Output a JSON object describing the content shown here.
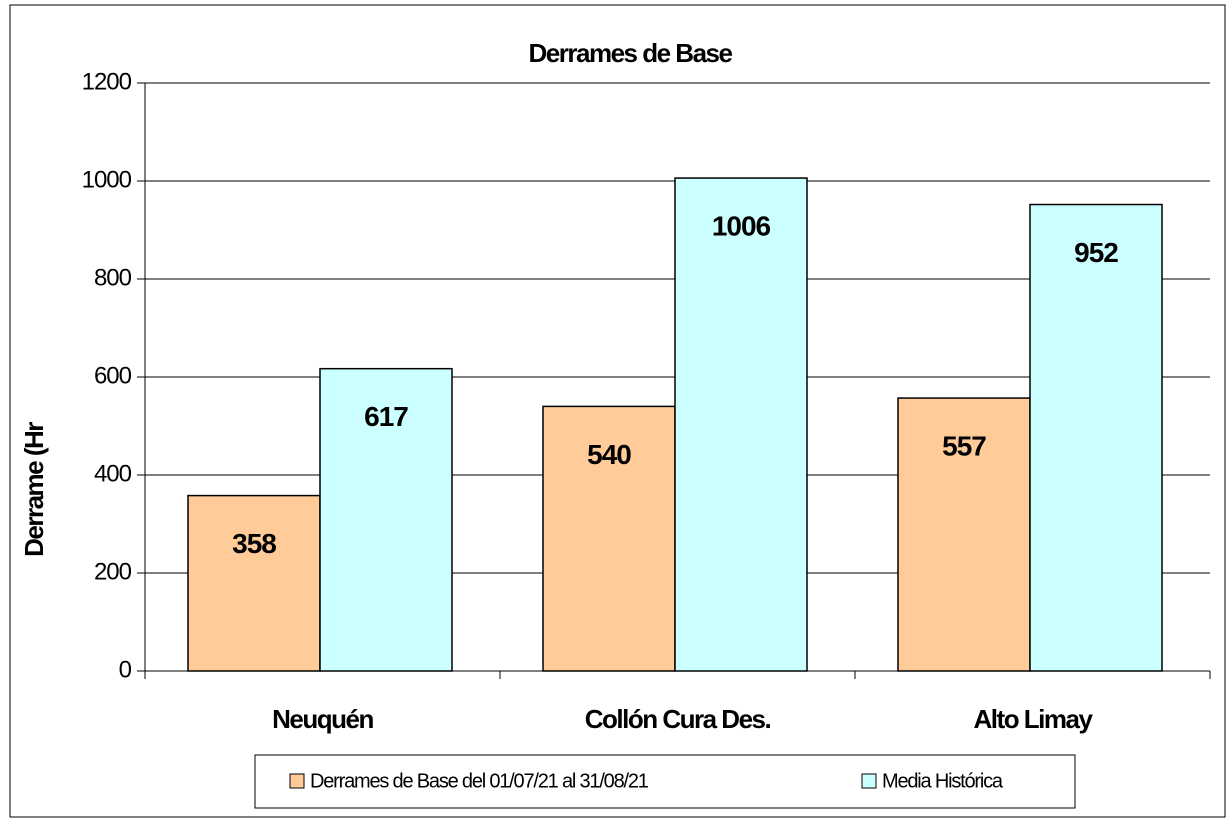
{
  "chart_data": {
    "type": "bar",
    "title": "Derrames de Base",
    "y_label": "Derrame (Hr",
    "categories": [
      "Neuquén",
      "Collón Cura Des.",
      "Alto Limay"
    ],
    "series": [
      {
        "name": "Derrames de Base del 01/07/21 al 31/08/21",
        "color": "#ffcc99",
        "values": [
          358,
          540,
          557
        ]
      },
      {
        "name": "Media Histórica",
        "color": "#ccffff",
        "values": [
          617,
          1006,
          952
        ]
      }
    ],
    "ylim": [
      0,
      1200
    ],
    "yticks": [
      0,
      200,
      400,
      600,
      800,
      1000,
      1200
    ],
    "grid": true
  }
}
